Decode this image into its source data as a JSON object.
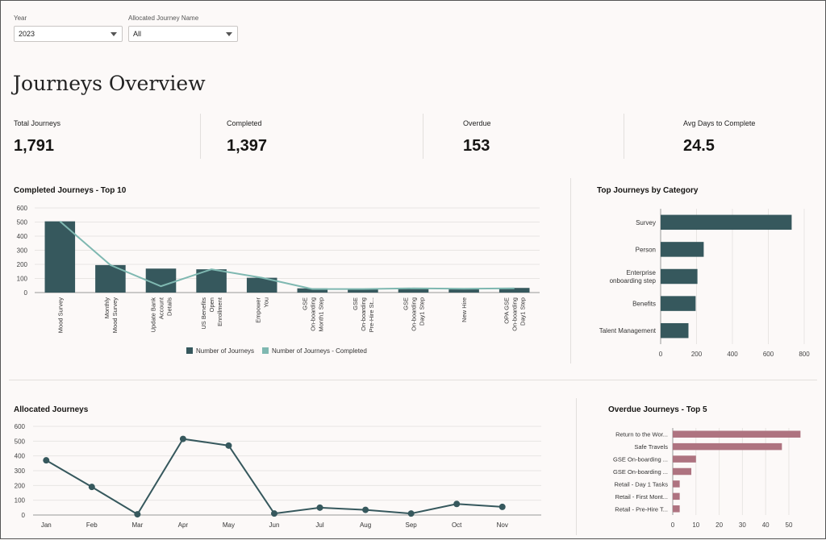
{
  "filters": {
    "year": {
      "label": "Year",
      "value": "2023"
    },
    "journey_name": {
      "label": "Allocated Journey Name",
      "value": "All"
    }
  },
  "page": {
    "title": "Journeys Overview"
  },
  "kpis": [
    {
      "label": "Total Journeys",
      "value": "1,791"
    },
    {
      "label": "Completed",
      "value": "1,397"
    },
    {
      "label": "Overdue",
      "value": "153"
    },
    {
      "label": "Avg Days to Complete",
      "value": "24.5"
    }
  ],
  "colors": {
    "primary": "#36585d",
    "teal": "#7fb8b1",
    "rose": "#ae7380",
    "grid": "#e8e5e3"
  },
  "chart_data": [
    {
      "id": "completed",
      "type": "bar",
      "title": "Completed Journeys - Top 10",
      "categories": [
        "Mood Survey",
        "Monthly Mood Survey",
        "Update Bank Account Details",
        "US Benefits Open Enrollment",
        "Empower You",
        "GSE On-boarding Month1 Step",
        "GSE On-boarding Pre-Hire St...",
        "GSE On-boarding Day1 Step",
        "New Hire",
        "OPA GSE On-boarding Day1 Step"
      ],
      "category_lines": [
        [
          "Mood Survey"
        ],
        [
          "Monthly",
          "Mood Survey"
        ],
        [
          "Update Bank",
          "Account",
          "Details"
        ],
        [
          "US Benefits",
          "Open",
          "Enrollment"
        ],
        [
          "Empower",
          "You"
        ],
        [
          "GSE",
          "On-boarding",
          "Month1 Step"
        ],
        [
          "GSE",
          "On-boarding",
          "Pre-Hire St..."
        ],
        [
          "GSE",
          "On-boarding",
          "Day1 Step"
        ],
        [
          "New Hire"
        ],
        [
          "OPA GSE",
          "On-boarding",
          "Day1 Step"
        ]
      ],
      "series": [
        {
          "name": "Number of Journeys",
          "type": "bar",
          "values": [
            505,
            195,
            170,
            165,
            105,
            30,
            28,
            30,
            27,
            33
          ]
        },
        {
          "name": "Number of Journeys - Completed",
          "type": "line",
          "values": [
            505,
            195,
            45,
            165,
            105,
            25,
            25,
            30,
            27,
            30
          ]
        }
      ],
      "yticks": [
        0,
        100,
        200,
        300,
        400,
        500,
        600
      ],
      "ylim": [
        0,
        600
      ],
      "legend": "bottom"
    },
    {
      "id": "category",
      "type": "bar",
      "orientation": "horizontal",
      "title": "Top Journeys by Category",
      "categories": [
        "Survey",
        "Person",
        "Enterprise onboarding step",
        "Benefits",
        "Talent Management"
      ],
      "category_lines": [
        [
          "Survey"
        ],
        [
          "Person"
        ],
        [
          "Enterprise",
          "onboarding step"
        ],
        [
          "Benefits"
        ],
        [
          "Talent Management"
        ]
      ],
      "values": [
        730,
        240,
        205,
        195,
        155
      ],
      "xticks": [
        0,
        200,
        400,
        600,
        800
      ],
      "xlim": [
        0,
        800
      ]
    },
    {
      "id": "allocated",
      "type": "line",
      "title": "Allocated Journeys",
      "categories": [
        "Jan",
        "Feb",
        "Mar",
        "Apr",
        "May",
        "Jun",
        "Jul",
        "Aug",
        "Sep",
        "Oct",
        "Nov"
      ],
      "values": [
        370,
        190,
        5,
        515,
        470,
        10,
        50,
        35,
        10,
        75,
        55
      ],
      "yticks": [
        0,
        100,
        200,
        300,
        400,
        500,
        600
      ],
      "ylim": [
        0,
        600
      ]
    },
    {
      "id": "overdue",
      "type": "bar",
      "orientation": "horizontal",
      "title": "Overdue Journeys - Top 5",
      "categories": [
        "Return to the Wor...",
        "Safe Travels",
        "GSE On-boarding ...",
        "GSE On-boarding ...",
        "Retail - Day 1 Tasks",
        "Retail - First Mont...",
        "Retail - Pre-Hire T..."
      ],
      "values": [
        55,
        47,
        10,
        8,
        3,
        3,
        3
      ],
      "xticks": [
        0,
        10,
        20,
        30,
        40,
        50
      ],
      "xlim": [
        0,
        58
      ]
    }
  ]
}
